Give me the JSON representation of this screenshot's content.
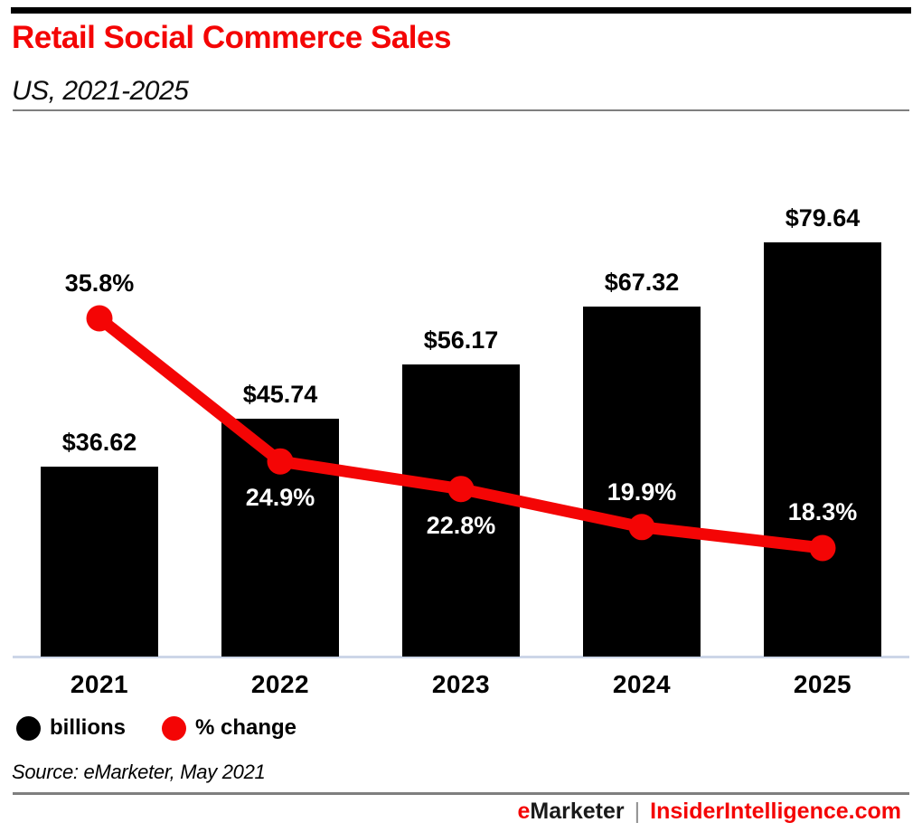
{
  "header": {
    "title": "Retail Social Commerce Sales",
    "subtitle": "US, 2021-2025"
  },
  "chart_data": {
    "type": "bar",
    "combo": "bar+line",
    "title": "Retail Social Commerce Sales",
    "subtitle": "US, 2021-2025",
    "categories": [
      "2021",
      "2022",
      "2023",
      "2024",
      "2025"
    ],
    "series": [
      {
        "name": "billions",
        "type": "bar",
        "color": "#000000",
        "values": [
          36.62,
          45.74,
          56.17,
          67.32,
          79.64
        ],
        "labels": [
          "$36.62",
          "$45.74",
          "$56.17",
          "$67.32",
          "$79.64"
        ]
      },
      {
        "name": "% change",
        "type": "line",
        "color": "#f40505",
        "values": [
          35.8,
          24.9,
          22.8,
          19.9,
          18.3
        ],
        "labels": [
          "35.8%",
          "24.9%",
          "22.8%",
          "19.9%",
          "18.3%"
        ]
      }
    ],
    "grid": false,
    "legend_position": "bottom-left"
  },
  "legend": {
    "items": [
      {
        "label": "billions",
        "color": "#000000"
      },
      {
        "label": "% change",
        "color": "#f40505"
      }
    ]
  },
  "source": "Source: eMarketer, May 2021",
  "footer": {
    "brand_e": "e",
    "brand_rest": "Marketer",
    "separator": "|",
    "site": "InsiderIntelligence.com"
  },
  "colors": {
    "accent_red": "#f40505",
    "bar_black": "#000000",
    "axis_line": "#ccd6e8",
    "divider_gray": "#7f7f7f"
  }
}
